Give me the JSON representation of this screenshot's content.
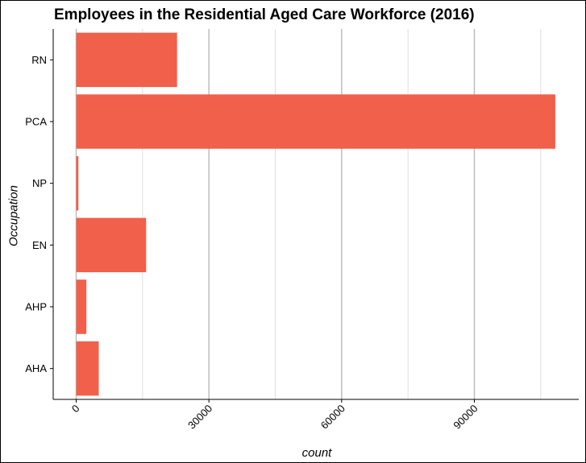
{
  "chart_data": {
    "type": "bar",
    "orientation": "horizontal",
    "title": "Employees in the Residential Aged Care Workforce (2016)",
    "xlabel": "count",
    "ylabel": "Occupation",
    "categories": [
      "RN",
      "PCA",
      "NP",
      "EN",
      "AHP",
      "AHA"
    ],
    "values": [
      22800,
      108300,
      500,
      15800,
      2300,
      5100
    ],
    "xlim": [
      -5200,
      113600
    ],
    "xticks": [
      0,
      30000,
      60000,
      90000
    ],
    "bar_color": "#F0604A",
    "grid": true,
    "legend": false
  }
}
